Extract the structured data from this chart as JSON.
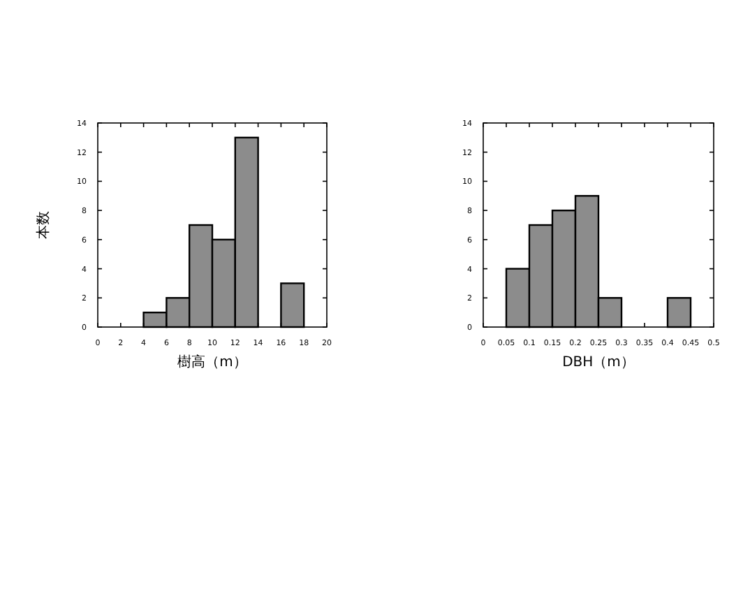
{
  "chart_data": [
    {
      "type": "histogram",
      "xlabel": "樹高（m）",
      "ylabel": "本数",
      "color": "#8c8c8c",
      "bins": [
        0,
        2,
        4,
        6,
        8,
        10,
        12,
        14,
        16,
        18,
        20
      ],
      "values": [
        0,
        0,
        1,
        2,
        7,
        6,
        13,
        0,
        3,
        0
      ],
      "xlim": [
        0,
        20
      ],
      "ylim": [
        0,
        14
      ],
      "xticks": [
        0,
        2,
        4,
        6,
        8,
        10,
        12,
        14,
        16,
        18,
        20
      ],
      "yticks": [
        0,
        2,
        4,
        6,
        8,
        10,
        12,
        14
      ]
    },
    {
      "type": "histogram",
      "xlabel": "DBH（m）",
      "color": "#8c8c8c",
      "bins": [
        0,
        0.05,
        0.1,
        0.15,
        0.2,
        0.25,
        0.3,
        0.35,
        0.4,
        0.45,
        0.5
      ],
      "values": [
        0,
        4,
        7,
        8,
        9,
        2,
        0,
        0,
        2,
        0
      ],
      "xlim": [
        0,
        0.5
      ],
      "ylim": [
        0,
        14
      ],
      "xticks": [
        0,
        0.05,
        0.1,
        0.15,
        0.2,
        0.25,
        0.3,
        0.35,
        0.4,
        0.45,
        0.5
      ],
      "yticks": [
        0,
        2,
        4,
        6,
        8,
        10,
        12,
        14
      ]
    }
  ]
}
